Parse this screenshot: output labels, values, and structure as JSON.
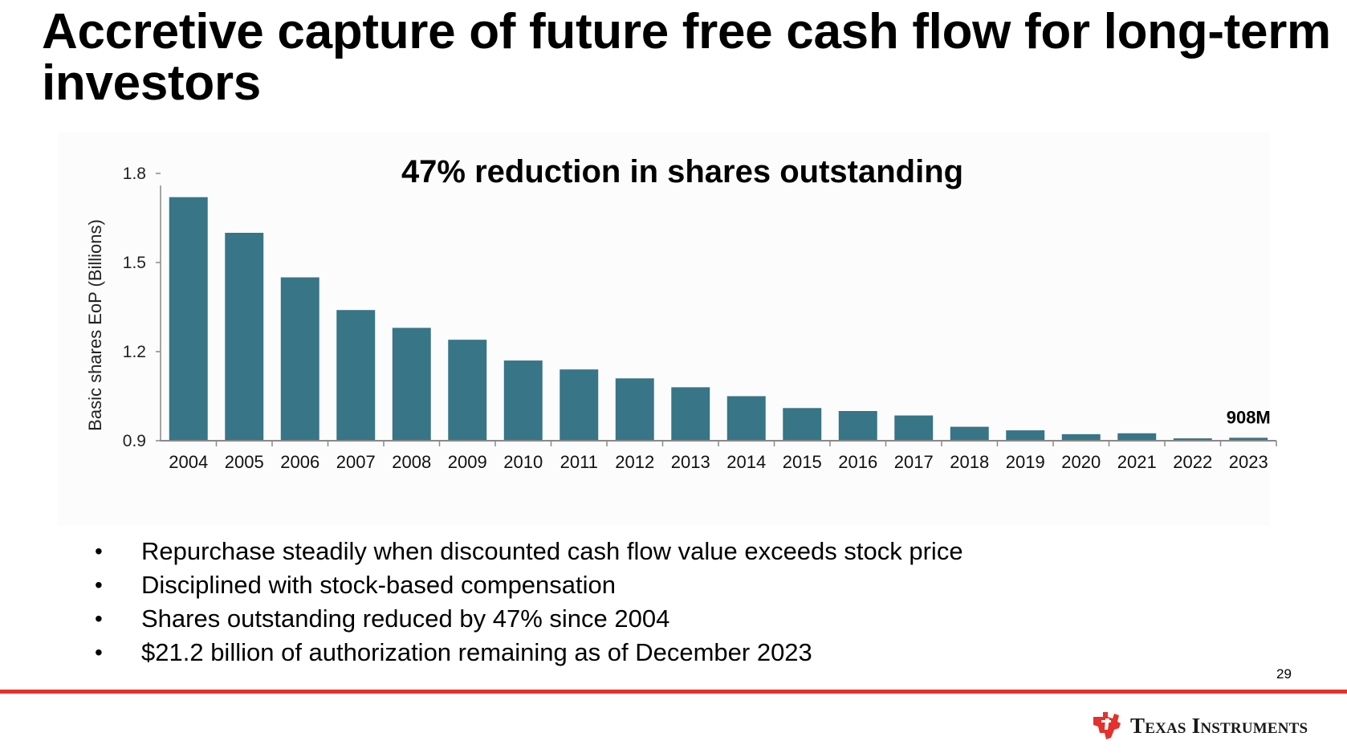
{
  "slide": {
    "title": "Accretive capture of future free cash flow for long-term investors",
    "page_number": "29"
  },
  "colors": {
    "bar": "#377587",
    "accent_red": "#e5312b"
  },
  "chart_data": {
    "type": "bar",
    "title": "47% reduction in shares outstanding",
    "xlabel": "",
    "ylabel": "Basic shares EoP (Billions)",
    "ylim": [
      0.9,
      1.8
    ],
    "yticks": [
      "0.9",
      "1.2",
      "1.5",
      "1.8"
    ],
    "categories": [
      "2004",
      "2005",
      "2006",
      "2007",
      "2008",
      "2009",
      "2010",
      "2011",
      "2012",
      "2013",
      "2014",
      "2015",
      "2016",
      "2017",
      "2018",
      "2019",
      "2020",
      "2021",
      "2022",
      "2023"
    ],
    "values": [
      1.72,
      1.6,
      1.45,
      1.34,
      1.28,
      1.24,
      1.17,
      1.14,
      1.11,
      1.08,
      1.05,
      1.01,
      1.0,
      0.985,
      0.947,
      0.935,
      0.922,
      0.925,
      0.908,
      0.91
    ],
    "data_labels": [
      {
        "category": "2023",
        "text": "908M"
      }
    ]
  },
  "bullets": [
    "Repurchase steadily when discounted cash flow value exceeds stock price",
    "Disciplined with stock-based compensation",
    "Shares outstanding reduced by 47% since 2004",
    "$21.2 billion of authorization remaining as of December 2023"
  ],
  "bullet_glyph": "•",
  "brand": {
    "name": "Texas Instruments",
    "logo_icon": "texas-instruments-logo-icon"
  }
}
